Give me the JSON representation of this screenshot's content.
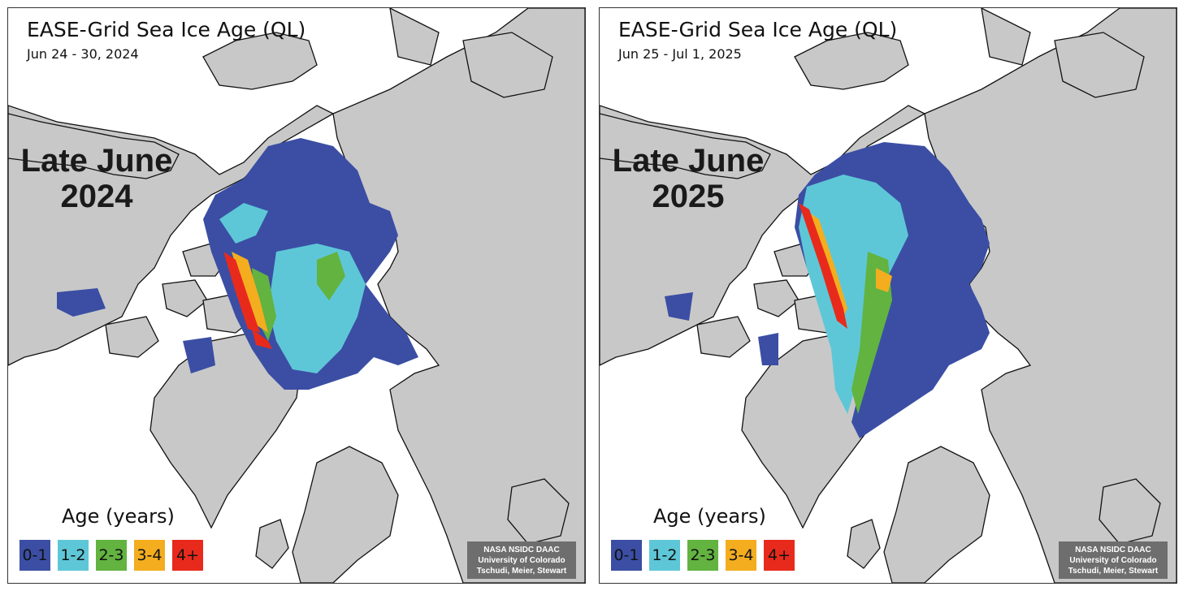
{
  "colors": {
    "land": "#c8c8c8",
    "land_edge": "#e2e2e2",
    "ocean": "#ffffff",
    "coast": "#111111",
    "age_0_1": "#3b4ea4",
    "age_1_2": "#5ec7d7",
    "age_2_3": "#62b340",
    "age_3_4": "#f3ad1f",
    "age_4_plus": "#e82a1c",
    "credit_bg": "#6e6e6e"
  },
  "panels": [
    {
      "id": "2024",
      "title": "EASE-Grid Sea Ice Age (QL)",
      "dates": "Jun 24 - 30, 2024",
      "overlay_line1": "Late June",
      "overlay_line2": "2024",
      "legend_title": "Age (years)",
      "legend": [
        {
          "label": "0-1",
          "color": "#3b4ea4"
        },
        {
          "label": "1-2",
          "color": "#5ec7d7"
        },
        {
          "label": "2-3",
          "color": "#62b340"
        },
        {
          "label": "3-4",
          "color": "#f3ad1f"
        },
        {
          "label": "4+",
          "color": "#e82a1c"
        }
      ],
      "credit": [
        "NASA NSIDC DAAC",
        "University of Colorado",
        "Tschudi, Meier, Stewart"
      ]
    },
    {
      "id": "2025",
      "title": "EASE-Grid Sea Ice Age (QL)",
      "dates": "Jun 25 - Jul 1, 2025",
      "overlay_line1": "Late June",
      "overlay_line2": "2025",
      "legend_title": "Age (years)",
      "legend": [
        {
          "label": "0-1",
          "color": "#3b4ea4"
        },
        {
          "label": "1-2",
          "color": "#5ec7d7"
        },
        {
          "label": "2-3",
          "color": "#62b340"
        },
        {
          "label": "3-4",
          "color": "#f3ad1f"
        },
        {
          "label": "4+",
          "color": "#e82a1c"
        }
      ],
      "credit": [
        "NASA NSIDC DAAC",
        "University of Colorado",
        "Tschudi, Meier, Stewart"
      ]
    }
  ]
}
